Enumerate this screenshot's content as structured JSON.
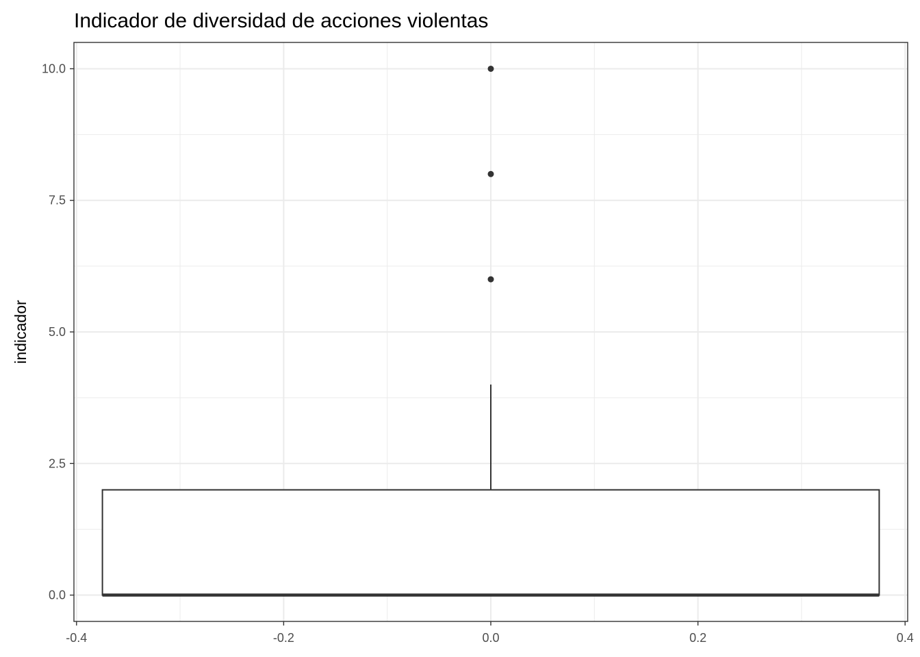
{
  "chart_data": {
    "type": "boxplot",
    "title": "Indicador de diversidad de acciones violentas",
    "xlabel": "",
    "ylabel": "indicador",
    "xlim": [
      -0.4025,
      0.4025
    ],
    "ylim": [
      -0.5,
      10.5
    ],
    "x_ticks": [
      -0.4,
      -0.2,
      0.0,
      0.2,
      0.4
    ],
    "x_tick_labels": [
      "-0.4",
      "-0.2",
      "0.0",
      "0.2",
      "0.4"
    ],
    "y_ticks": [
      0.0,
      2.5,
      5.0,
      7.5,
      10.0
    ],
    "y_tick_labels": [
      "0.0",
      "2.5",
      "5.0",
      "7.5",
      "10.0"
    ],
    "x_minor": [
      -0.3,
      -0.1,
      0.1,
      0.3
    ],
    "y_minor": [
      1.25,
      3.75,
      6.25,
      8.75
    ],
    "grid": true,
    "box": {
      "x_center": 0.0,
      "x_left": -0.375,
      "x_right": 0.375,
      "q1": 0,
      "median": 0,
      "q3": 2,
      "whisker_low": 0,
      "whisker_high": 4
    },
    "outliers": [
      6,
      8,
      10
    ],
    "colors": {
      "grid": "#ebebeb",
      "box_stroke": "#333333",
      "panel_border": "#333333",
      "outlier": "#333333"
    }
  }
}
